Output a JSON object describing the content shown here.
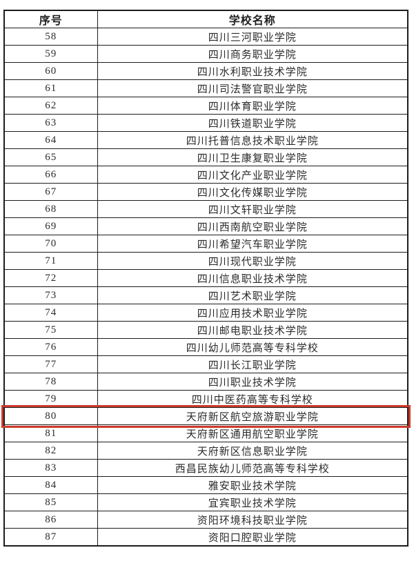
{
  "table": {
    "headers": [
      "序号",
      "学校名称"
    ],
    "highlighted_no": "80",
    "highlight_color": "#cd3a2c",
    "border_color": "#1b1b1b",
    "text_color": "#2a2a2a",
    "rows": [
      {
        "no": "58",
        "name": "四川三河职业学院"
      },
      {
        "no": "59",
        "name": "四川商务职业学院"
      },
      {
        "no": "60",
        "name": "四川水利职业技术学院"
      },
      {
        "no": "61",
        "name": "四川司法警官职业学院"
      },
      {
        "no": "62",
        "name": "四川体育职业学院"
      },
      {
        "no": "63",
        "name": "四川铁道职业学院"
      },
      {
        "no": "64",
        "name": "四川托普信息技术职业学院"
      },
      {
        "no": "65",
        "name": "四川卫生康复职业学院"
      },
      {
        "no": "66",
        "name": "四川文化产业职业学院"
      },
      {
        "no": "67",
        "name": "四川文化传媒职业学院"
      },
      {
        "no": "68",
        "name": "四川文轩职业学院"
      },
      {
        "no": "69",
        "name": "四川西南航空职业学院"
      },
      {
        "no": "70",
        "name": "四川希望汽车职业学院"
      },
      {
        "no": "71",
        "name": "四川现代职业学院"
      },
      {
        "no": "72",
        "name": "四川信息职业技术学院"
      },
      {
        "no": "73",
        "name": "四川艺术职业学院"
      },
      {
        "no": "74",
        "name": "四川应用技术职业学院"
      },
      {
        "no": "75",
        "name": "四川邮电职业技术学院"
      },
      {
        "no": "76",
        "name": "四川幼儿师范高等专科学校"
      },
      {
        "no": "77",
        "name": "四川长江职业学院"
      },
      {
        "no": "78",
        "name": "四川职业技术学院"
      },
      {
        "no": "79",
        "name": "四川中医药高等专科学校"
      },
      {
        "no": "80",
        "name": "天府新区航空旅游职业学院"
      },
      {
        "no": "81",
        "name": "天府新区通用航空职业学院"
      },
      {
        "no": "82",
        "name": "天府新区信息职业学院"
      },
      {
        "no": "83",
        "name": "西昌民族幼儿师范高等专科学校"
      },
      {
        "no": "84",
        "name": "雅安职业技术学院"
      },
      {
        "no": "85",
        "name": "宜宾职业技术学院"
      },
      {
        "no": "86",
        "name": "资阳环境科技职业学院"
      },
      {
        "no": "87",
        "name": "资阳口腔职业学院"
      }
    ]
  }
}
